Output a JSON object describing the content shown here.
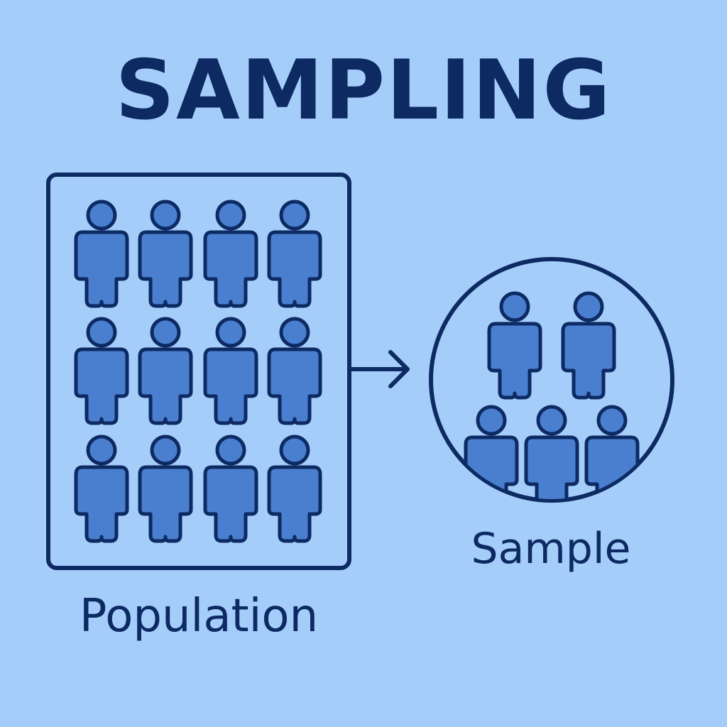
{
  "title": "SAMPLING",
  "population": {
    "label": "Population"
  },
  "sample": {
    "label": "Sample"
  },
  "colors": {
    "background": "#a5cdfa",
    "outline": "#0d2a63",
    "person_fill": "#4a7fcf"
  },
  "icons": {
    "person": "person-icon",
    "arrow": "arrow-right-icon"
  }
}
